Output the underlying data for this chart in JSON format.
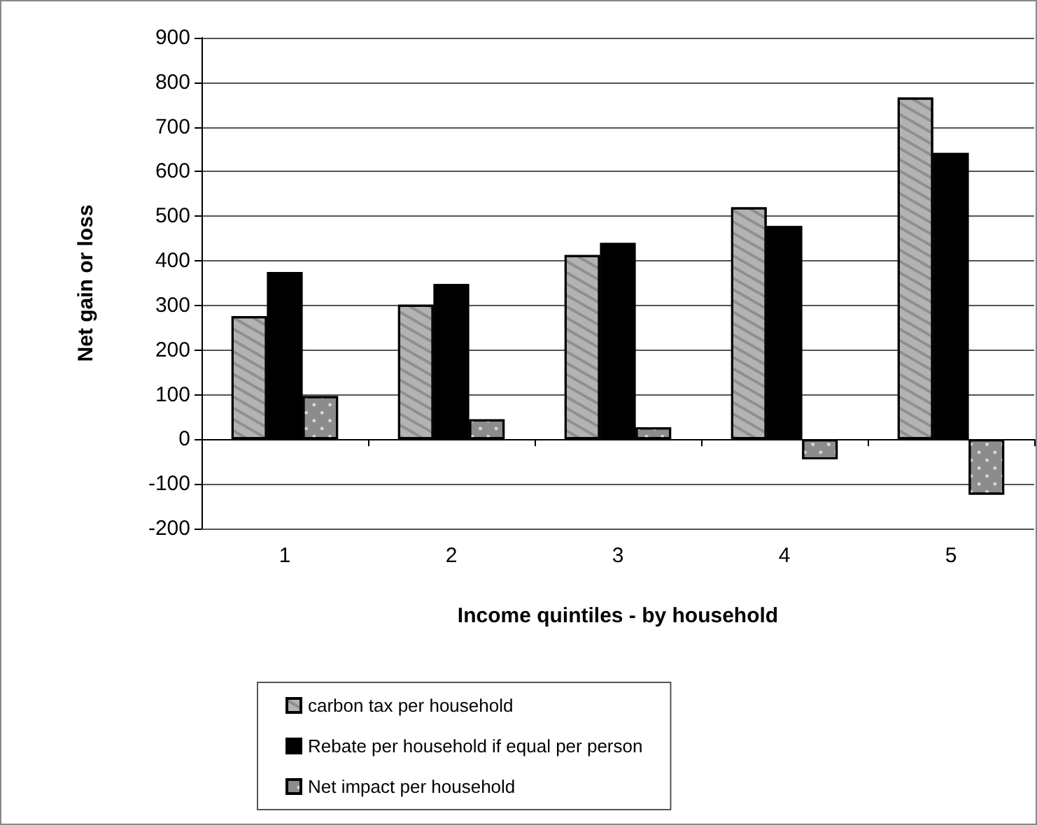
{
  "chart_data": {
    "type": "bar",
    "xlabel": "Income quintiles - by household",
    "ylabel": "Net gain or loss",
    "categories": [
      "1",
      "2",
      "3",
      "4",
      "5"
    ],
    "series": [
      {
        "name": "carbon tax per household",
        "color": "#b3b3b3",
        "values": [
          276,
          302,
          413,
          520,
          766
        ]
      },
      {
        "name": "Rebate per household if equal per person",
        "color": "#000000",
        "values": [
          375,
          348,
          440,
          478,
          642
        ]
      },
      {
        "name": "Net impact per household",
        "color": "#8c8c8c",
        "values": [
          97,
          45,
          27,
          -45,
          -124
        ]
      }
    ],
    "ylim": [
      -200,
      900
    ],
    "yticks": [
      -200,
      -100,
      0,
      100,
      200,
      300,
      400,
      500,
      600,
      700,
      800,
      900
    ],
    "grid": "y",
    "legend": "bottom"
  }
}
